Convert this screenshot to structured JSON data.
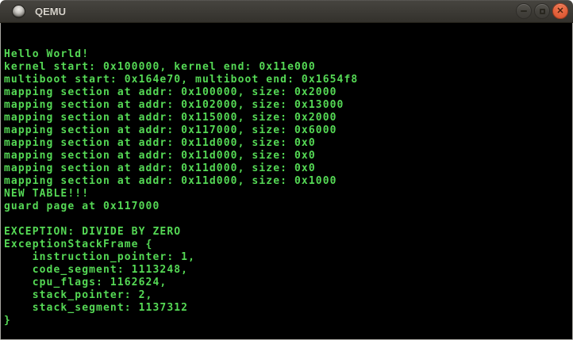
{
  "window": {
    "title": "QEMU",
    "controls": {
      "minimize_label": "minimize",
      "maximize_label": "maximize",
      "close_label": "close",
      "close_glyph": "✕"
    },
    "icons": {
      "window_icon": "qemu-window-icon",
      "minimize": "minimize-icon",
      "maximize": "maximize-icon",
      "close": "close-icon"
    }
  },
  "colors": {
    "console_background": "#000000",
    "console_text_green": "#55d955",
    "titlebar_background": "#3c3a35",
    "titlebar_text": "#d6d2ca",
    "close_button_orange": "#e6643e",
    "window_border": "#a8a7a2"
  },
  "console": {
    "columns": 80,
    "rows": 25,
    "lines": [
      "",
      "",
      "Hello World!",
      "kernel start: 0x100000, kernel end: 0x11e000",
      "multiboot start: 0x164e70, multiboot end: 0x1654f8",
      "mapping section at addr: 0x100000, size: 0x2000",
      "mapping section at addr: 0x102000, size: 0x13000",
      "mapping section at addr: 0x115000, size: 0x2000",
      "mapping section at addr: 0x117000, size: 0x6000",
      "mapping section at addr: 0x11d000, size: 0x0",
      "mapping section at addr: 0x11d000, size: 0x0",
      "mapping section at addr: 0x11d000, size: 0x0",
      "mapping section at addr: 0x11d000, size: 0x1000",
      "NEW TABLE!!!",
      "guard page at 0x117000",
      "",
      "EXCEPTION: DIVIDE BY ZERO",
      "ExceptionStackFrame {",
      "    instruction_pointer: 1,",
      "    code_segment: 1113248,",
      "    cpu_flags: 1162624,",
      "    stack_pointer: 2,",
      "    stack_segment: 1137312",
      "}",
      ""
    ]
  }
}
